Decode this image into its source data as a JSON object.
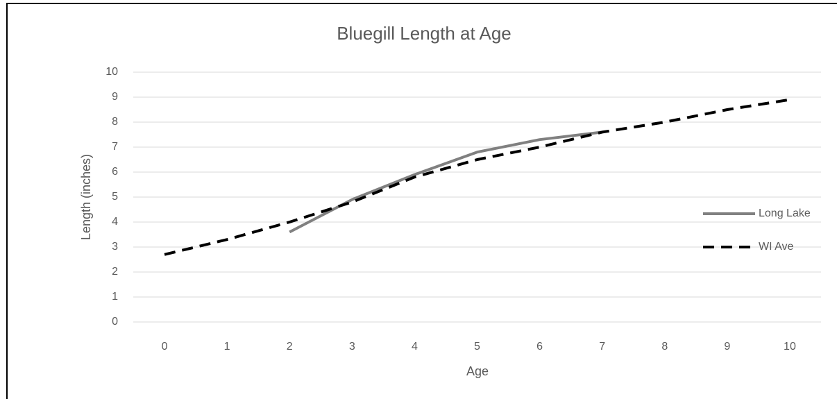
{
  "chart_data": {
    "type": "line",
    "title": "Bluegill Length at Age",
    "x_label": "Age",
    "y_label": "Length (inches)",
    "categories": [
      "0",
      "1",
      "2",
      "3",
      "4",
      "5",
      "6",
      "7",
      "8",
      "9",
      "10"
    ],
    "series": [
      {
        "name": "Long Lake",
        "color": "#808080",
        "dash": false,
        "values": [
          null,
          null,
          3.6,
          4.9,
          5.9,
          6.8,
          7.3,
          7.6,
          null,
          null,
          null
        ]
      },
      {
        "name": "WI Ave",
        "color": "#000000",
        "dash": true,
        "values": [
          2.7,
          3.3,
          4.0,
          4.8,
          5.8,
          6.5,
          7.0,
          7.6,
          8.0,
          8.5,
          8.9
        ]
      }
    ],
    "ylim": [
      0,
      10
    ],
    "yticks": [
      0,
      1,
      2,
      3,
      4,
      5,
      6,
      7,
      8,
      9,
      10
    ],
    "grid": true,
    "legend": "right"
  }
}
